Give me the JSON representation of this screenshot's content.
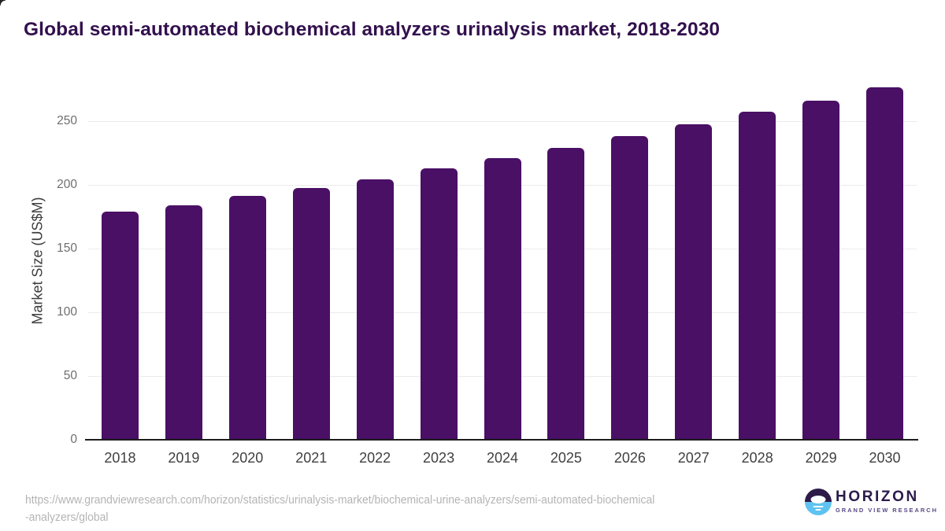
{
  "page": {
    "title": "Global semi-automated biochemical analyzers urinalysis market, 2018-2030",
    "source_url_line1": "https://www.grandviewresearch.com/horizon/statistics/urinalysis-market/biochemical-urine-analyzers/semi-automated-biochemical",
    "source_url_line2": "-analyzers/global"
  },
  "chart_data": {
    "type": "bar",
    "title": "Global semi-automated biochemical analyzers urinalysis market, 2018-2030",
    "categories": [
      "2018",
      "2019",
      "2020",
      "2021",
      "2022",
      "2023",
      "2024",
      "2025",
      "2026",
      "2027",
      "2028",
      "2029",
      "2030"
    ],
    "values": [
      179,
      184,
      191,
      197,
      204,
      213,
      221,
      229,
      238,
      247,
      257,
      266,
      276
    ],
    "xlabel": "",
    "ylabel": "Market Size (US$M)",
    "yticks": [
      0,
      50,
      100,
      150,
      200,
      250
    ],
    "ylim": [
      0,
      283
    ],
    "grid": "horizontal",
    "legend": "none",
    "bar_color": "#4a1065",
    "gridline_color": "#ebebeb",
    "axis_color": "#1d1d1d"
  },
  "logo": {
    "name": "HORIZON",
    "subtitle": "GRAND VIEW RESEARCH",
    "mark_top_color": "#2d1a47",
    "mark_bottom_color": "#5ec3f0"
  }
}
